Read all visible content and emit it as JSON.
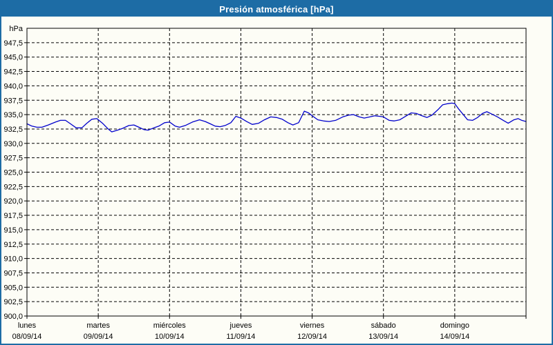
{
  "window": {
    "title": "Presión atmosférica [hPa]"
  },
  "colors": {
    "titlebar_bg": "#1d6ca5",
    "titlebar_text": "#ffffff",
    "frame_border": "#1d6ca5",
    "content_bg": "#fdfdf6",
    "line": "#0000cc",
    "grid": "#000000",
    "axis": "#000000",
    "text": "#000000"
  },
  "chart_data": {
    "type": "line",
    "title": "Presión atmosférica [hPa]",
    "unit_label": "hPa",
    "ylabel": "hPa",
    "xlabel": "",
    "ylim": [
      900,
      950
    ],
    "ytick_step": 2.5,
    "ytick_values": [
      947.5,
      945.0,
      942.5,
      940.0,
      937.5,
      935.0,
      932.5,
      930.0,
      927.5,
      925.0,
      922.5,
      920.0,
      917.5,
      915.0,
      912.5,
      910.0,
      907.5,
      905.0,
      902.5,
      900.0
    ],
    "ytick_labels": [
      "947,5",
      "945,0",
      "942,5",
      "940,0",
      "937,5",
      "935,0",
      "932,5",
      "930,0",
      "927,5",
      "925,0",
      "922,5",
      "920,0",
      "917,5",
      "915,0",
      "912,5",
      "910,0",
      "907,5",
      "905,0",
      "902,5",
      "900,0"
    ],
    "grid": "dashed",
    "legend_position": "none",
    "x_days": [
      {
        "name": "lunes",
        "date": "08/09/14"
      },
      {
        "name": "martes",
        "date": "09/09/14"
      },
      {
        "name": "miércoles",
        "date": "10/09/14"
      },
      {
        "name": "jueves",
        "date": "11/09/14"
      },
      {
        "name": "viernes",
        "date": "12/09/14"
      },
      {
        "name": "sábado",
        "date": "13/09/14"
      },
      {
        "name": "domingo",
        "date": "14/09/14"
      }
    ],
    "x_range_days": [
      0,
      7
    ],
    "series": [
      {
        "name": "Presión atmosférica",
        "unit": "hPa",
        "points": [
          [
            0.0,
            933.4
          ],
          [
            0.07,
            933.0
          ],
          [
            0.14,
            932.8
          ],
          [
            0.21,
            932.8
          ],
          [
            0.3,
            933.2
          ],
          [
            0.4,
            933.7
          ],
          [
            0.47,
            934.0
          ],
          [
            0.54,
            934.0
          ],
          [
            0.61,
            933.4
          ],
          [
            0.69,
            932.7
          ],
          [
            0.77,
            932.7
          ],
          [
            0.84,
            933.5
          ],
          [
            0.91,
            934.2
          ],
          [
            0.98,
            934.3
          ],
          [
            1.06,
            933.5
          ],
          [
            1.13,
            932.6
          ],
          [
            1.19,
            932.0
          ],
          [
            1.27,
            932.3
          ],
          [
            1.34,
            932.6
          ],
          [
            1.43,
            933.1
          ],
          [
            1.5,
            933.2
          ],
          [
            1.57,
            932.8
          ],
          [
            1.64,
            932.4
          ],
          [
            1.7,
            932.3
          ],
          [
            1.78,
            932.7
          ],
          [
            1.85,
            933.0
          ],
          [
            1.93,
            933.6
          ],
          [
            2.0,
            933.7
          ],
          [
            2.08,
            933.0
          ],
          [
            2.14,
            932.8
          ],
          [
            2.22,
            933.1
          ],
          [
            2.32,
            933.7
          ],
          [
            2.42,
            934.1
          ],
          [
            2.5,
            933.8
          ],
          [
            2.57,
            933.4
          ],
          [
            2.64,
            933.0
          ],
          [
            2.71,
            932.9
          ],
          [
            2.78,
            933.1
          ],
          [
            2.86,
            933.6
          ],
          [
            2.93,
            934.7
          ],
          [
            3.0,
            934.4
          ],
          [
            3.08,
            933.8
          ],
          [
            3.16,
            933.3
          ],
          [
            3.25,
            933.5
          ],
          [
            3.33,
            934.1
          ],
          [
            3.42,
            934.6
          ],
          [
            3.5,
            934.5
          ],
          [
            3.58,
            934.2
          ],
          [
            3.66,
            933.6
          ],
          [
            3.73,
            933.2
          ],
          [
            3.81,
            933.6
          ],
          [
            3.89,
            935.6
          ],
          [
            3.95,
            935.3
          ],
          [
            4.0,
            934.8
          ],
          [
            4.08,
            934.1
          ],
          [
            4.16,
            933.9
          ],
          [
            4.24,
            933.8
          ],
          [
            4.33,
            934.0
          ],
          [
            4.43,
            934.6
          ],
          [
            4.51,
            934.9
          ],
          [
            4.58,
            935.0
          ],
          [
            4.66,
            934.6
          ],
          [
            4.73,
            934.4
          ],
          [
            4.81,
            934.6
          ],
          [
            4.88,
            934.8
          ],
          [
            4.95,
            934.7
          ],
          [
            5.0,
            934.6
          ],
          [
            5.08,
            934.0
          ],
          [
            5.15,
            933.9
          ],
          [
            5.23,
            934.1
          ],
          [
            5.31,
            934.7
          ],
          [
            5.39,
            935.3
          ],
          [
            5.46,
            935.2
          ],
          [
            5.54,
            934.8
          ],
          [
            5.61,
            934.5
          ],
          [
            5.68,
            934.9
          ],
          [
            5.76,
            935.8
          ],
          [
            5.83,
            936.7
          ],
          [
            5.9,
            936.9
          ],
          [
            5.96,
            937.0
          ],
          [
            6.0,
            936.9
          ],
          [
            6.06,
            935.9
          ],
          [
            6.12,
            935.0
          ],
          [
            6.18,
            934.1
          ],
          [
            6.25,
            934.0
          ],
          [
            6.32,
            934.5
          ],
          [
            6.39,
            935.2
          ],
          [
            6.45,
            935.5
          ],
          [
            6.52,
            935.1
          ],
          [
            6.6,
            934.6
          ],
          [
            6.68,
            934.0
          ],
          [
            6.75,
            933.5
          ],
          [
            6.83,
            934.1
          ],
          [
            6.89,
            934.3
          ],
          [
            6.94,
            934.0
          ],
          [
            7.0,
            933.8
          ]
        ]
      }
    ]
  }
}
